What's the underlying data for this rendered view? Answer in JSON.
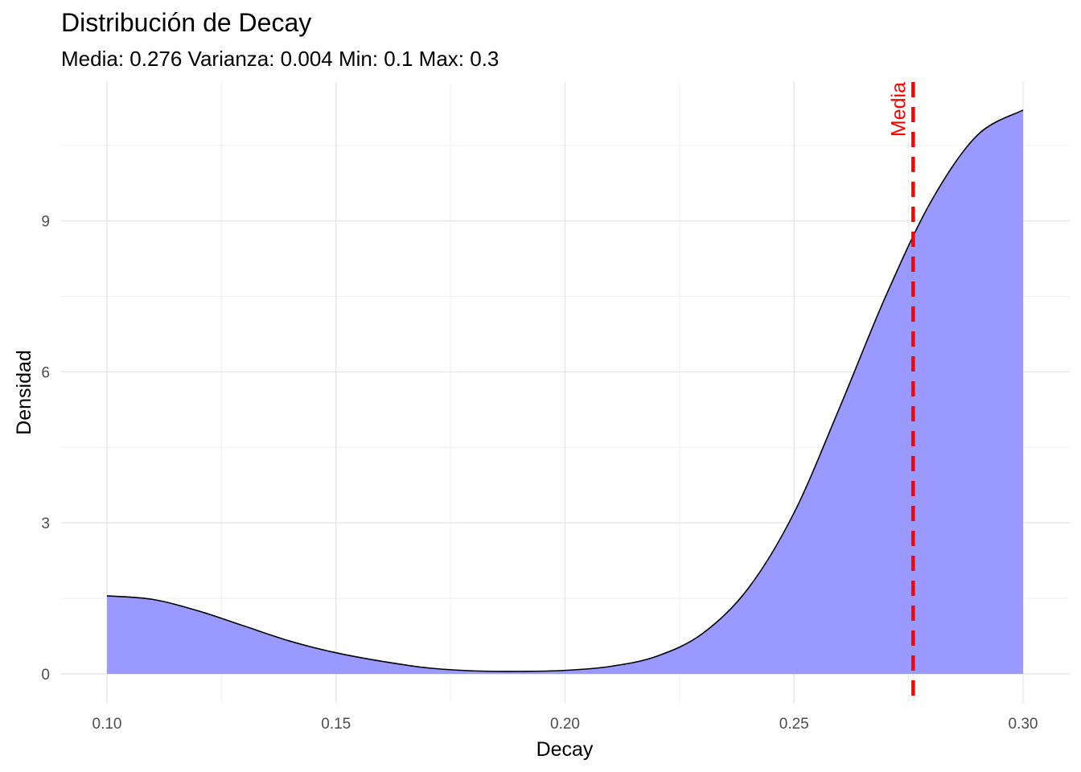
{
  "chart_data": {
    "type": "area",
    "title": "Distribución de Decay",
    "subtitle": "Media: 0.276 Varianza: 0.004 Min: 0.1 Max: 0.3",
    "xlabel": "Decay",
    "ylabel": "Densidad",
    "xlim": [
      0.1,
      0.3
    ],
    "ylim": [
      0,
      11.2
    ],
    "x_ticks": [
      0.1,
      0.15,
      0.2,
      0.25,
      0.3
    ],
    "x_tick_labels": [
      "0.10",
      "0.15",
      "0.20",
      "0.25",
      "0.30"
    ],
    "y_ticks": [
      0,
      3,
      6,
      9
    ],
    "y_tick_labels": [
      "0",
      "3",
      "6",
      "9"
    ],
    "grid": true,
    "series": [
      {
        "x": [
          0.1,
          0.11,
          0.12,
          0.13,
          0.14,
          0.15,
          0.16,
          0.17,
          0.18,
          0.19,
          0.2,
          0.21,
          0.22,
          0.23,
          0.24,
          0.25,
          0.26,
          0.27,
          0.28,
          0.29,
          0.3
        ],
        "y": [
          1.55,
          1.48,
          1.25,
          0.95,
          0.65,
          0.42,
          0.25,
          0.12,
          0.06,
          0.05,
          0.07,
          0.15,
          0.35,
          0.8,
          1.7,
          3.2,
          5.3,
          7.5,
          9.4,
          10.7,
          11.2
        ]
      }
    ],
    "fill_color": "#9999ff",
    "line_color": "#000000",
    "annotations": [
      {
        "type": "vline",
        "x": 0.276,
        "label": "Media",
        "color": "#ff0000",
        "style": "dashed"
      }
    ]
  }
}
